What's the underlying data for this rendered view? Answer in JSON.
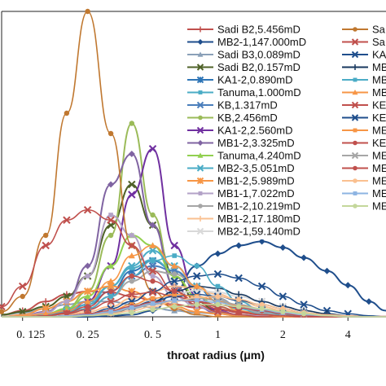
{
  "chart_data": {
    "type": "line",
    "title": "",
    "xlabel": "throat radius (μm)",
    "ylabel": "",
    "x_scale": "log",
    "xlim": [
      0.1,
      6
    ],
    "ylim": [
      0,
      30
    ],
    "x_ticks": [
      0.125,
      0.25,
      0.5,
      1,
      2,
      4
    ],
    "x_tick_labels": [
      "0. 125",
      "0. 25",
      "0. 5",
      "1",
      "2",
      "4"
    ],
    "grid": false,
    "legend_placement": "top-right, two columns",
    "x": [
      0.1,
      0.125,
      0.16,
      0.2,
      0.25,
      0.32,
      0.4,
      0.5,
      0.63,
      0.8,
      1,
      1.25,
      1.6,
      2,
      2.5,
      3.2,
      4,
      5,
      6
    ],
    "series": [
      {
        "name": "Sadi B2,5.456mD",
        "color": "#c0504d",
        "marker": "tick",
        "values": [
          0.2,
          0.6,
          1.5,
          2.2,
          2.5,
          2.4,
          2.0,
          1.6,
          1.2,
          0.9,
          0.7,
          0.5,
          0.4,
          0.3,
          0.2,
          0.15,
          0.1,
          0.05,
          0.02
        ]
      },
      {
        "name": "MB2-1,147.000mD",
        "color": "#1f4e8c",
        "marker": "diamond",
        "values": [
          0,
          0,
          0,
          0,
          0,
          0.1,
          0.2,
          0.6,
          2.5,
          5.0,
          6.2,
          7.0,
          7.4,
          6.8,
          5.8,
          4.5,
          3.1,
          1.5,
          0.6
        ]
      },
      {
        "name": "Sadi B3,0.089mD",
        "color": "#8aa0b8",
        "marker": "triangle",
        "values": [
          0.2,
          0.4,
          0.8,
          1.2,
          1.5,
          1.5,
          1.2,
          0.9,
          0.6,
          0.4,
          0.3,
          0.2,
          0.1,
          0.05,
          0,
          0,
          0,
          0,
          0
        ]
      },
      {
        "name": "Sadi B2,0.157mD",
        "color": "#4f6228",
        "marker": "x",
        "values": [
          0.2,
          0.5,
          1.0,
          2.0,
          4.0,
          9.0,
          13.0,
          9.0,
          4.0,
          1.5,
          0.5,
          0.2,
          0.1,
          0,
          0,
          0,
          0,
          0,
          0
        ]
      },
      {
        "name": "KA1-2,0.890mD",
        "color": "#2e75b6",
        "marker": "star",
        "values": [
          0,
          0.1,
          0.3,
          0.6,
          1.2,
          2.5,
          4.5,
          5.5,
          4.5,
          2.8,
          1.5,
          0.8,
          0.4,
          0.2,
          0.1,
          0,
          0,
          0,
          0
        ]
      },
      {
        "name": "Tanuma,1.000mD",
        "color": "#4bacc6",
        "marker": "bar",
        "values": [
          0,
          0.1,
          0.3,
          0.7,
          1.5,
          3.0,
          4.8,
          5.6,
          4.5,
          3.0,
          1.8,
          1.0,
          0.5,
          0.2,
          0.1,
          0,
          0,
          0,
          0
        ]
      },
      {
        "name": "KB,1.317mD",
        "color": "#4a7ebb",
        "marker": "x",
        "values": [
          0,
          0,
          0.1,
          0.3,
          0.8,
          2.0,
          4.0,
          5.0,
          4.5,
          3.0,
          1.8,
          1.0,
          0.5,
          0.2,
          0.1,
          0,
          0,
          0,
          0
        ]
      },
      {
        "name": "KB,2.456mD",
        "color": "#9bbb59",
        "marker": "circle",
        "values": [
          0,
          0,
          0.2,
          0.8,
          2.5,
          8.0,
          19.0,
          10.0,
          3.0,
          1.0,
          0.4,
          0.1,
          0,
          0,
          0,
          0,
          0,
          0,
          0
        ]
      },
      {
        "name": "KA1-2,2.560mD",
        "color": "#7030a0",
        "marker": "x",
        "values": [
          0,
          0,
          0.2,
          0.5,
          1.5,
          5.0,
          12.0,
          16.5,
          7.0,
          2.0,
          0.6,
          0.2,
          0,
          0,
          0,
          0,
          0,
          0,
          0
        ]
      },
      {
        "name": "MB1-2,3.325mD",
        "color": "#8064a2",
        "marker": "diamond",
        "values": [
          0,
          0.1,
          0.5,
          1.5,
          5.0,
          13.0,
          16.0,
          9.0,
          3.0,
          1.0,
          0.3,
          0.1,
          0,
          0,
          0,
          0,
          0,
          0,
          0
        ]
      },
      {
        "name": "Tanuma,4.240mD",
        "color": "#92d050",
        "marker": "triangle",
        "values": [
          0,
          0.1,
          0.3,
          0.8,
          2.0,
          5.0,
          8.0,
          7.0,
          4.0,
          2.0,
          1.0,
          0.5,
          0.2,
          0.1,
          0,
          0,
          0,
          0,
          0
        ]
      },
      {
        "name": "MB2-3,5.051mD",
        "color": "#4bacc6",
        "marker": "x",
        "values": [
          0,
          0,
          0.2,
          0.5,
          1.2,
          3.0,
          5.0,
          6.5,
          5.0,
          3.0,
          1.5,
          0.8,
          0.3,
          0.1,
          0,
          0,
          0,
          0,
          0
        ]
      },
      {
        "name": "MB1-2,5.989mD",
        "color": "#f79646",
        "marker": "star",
        "values": [
          0,
          0.2,
          0.8,
          1.5,
          2.5,
          3.0,
          2.5,
          1.6,
          1.0,
          0.5,
          0.3,
          0.1,
          0,
          0,
          0,
          0,
          0,
          0,
          0
        ]
      },
      {
        "name": "MB1-1,7.022mD",
        "color": "#b3a2c7",
        "marker": "bar",
        "values": [
          0,
          0.1,
          0.4,
          1.5,
          4.0,
          10.0,
          8.0,
          4.0,
          2.0,
          1.0,
          0.5,
          0.2,
          0.1,
          0,
          0,
          0,
          0,
          0,
          0
        ]
      },
      {
        "name": "MB1-2,10.219mD",
        "color": "#a6a6a6",
        "marker": "circle",
        "values": [
          0,
          0,
          0.1,
          0.3,
          0.8,
          2.0,
          3.5,
          4.5,
          4.2,
          3.0,
          1.8,
          0.9,
          0.4,
          0.2,
          0.1,
          0,
          0,
          0,
          0
        ]
      },
      {
        "name": "MB1-2,17.180mD",
        "color": "#fac090",
        "marker": "tick",
        "values": [
          0,
          0,
          0.1,
          0.2,
          0.5,
          1.0,
          1.8,
          2.5,
          3.0,
          2.8,
          2.2,
          1.6,
          1.0,
          0.6,
          0.3,
          0.1,
          0,
          0,
          0
        ]
      },
      {
        "name": "MB2-1,59.140mD",
        "color": "#d9d9d9",
        "marker": "x",
        "values": [
          0,
          0,
          0,
          0.1,
          0.2,
          0.5,
          1.0,
          1.6,
          2.2,
          2.6,
          2.4,
          2.0,
          1.5,
          1.0,
          0.6,
          0.3,
          0.1,
          0,
          0
        ]
      },
      {
        "name": "Sa",
        "color": "#c07830",
        "marker": "circle",
        "values": [
          0.5,
          2.0,
          8.0,
          20.0,
          30.0,
          18.0,
          7.0,
          2.5,
          0.8,
          0.2,
          0,
          0,
          0,
          0,
          0,
          0,
          0,
          0,
          0
        ]
      },
      {
        "name": "Sa",
        "color": "#c0504d",
        "marker": "x",
        "values": [
          1.0,
          3.0,
          7.0,
          9.5,
          10.5,
          9.5,
          7.0,
          4.5,
          2.5,
          1.2,
          0.5,
          0.2,
          0,
          0,
          0,
          0,
          0,
          0,
          0
        ]
      },
      {
        "name": "KA",
        "color": "#1f4e8c",
        "marker": "x",
        "values": [
          0,
          0,
          0,
          0.1,
          0.3,
          0.8,
          1.5,
          2.5,
          3.5,
          4.0,
          4.2,
          3.8,
          3.0,
          2.0,
          1.2,
          0.6,
          0.3,
          0.1,
          0
        ]
      },
      {
        "name": "MB",
        "color": "#17375e",
        "marker": "tick",
        "values": [
          0,
          0,
          0,
          0,
          0.1,
          0.3,
          0.8,
          1.5,
          2.5,
          3.0,
          2.8,
          2.2,
          1.5,
          1.0,
          0.6,
          0.3,
          0.1,
          0,
          0
        ]
      },
      {
        "name": "MB",
        "color": "#4bacc6",
        "marker": "bar",
        "values": [
          0,
          0,
          0.1,
          0.3,
          0.8,
          2.0,
          4.0,
          5.5,
          6.0,
          5.0,
          3.0,
          1.5,
          0.6,
          0.2,
          0,
          0,
          0,
          0,
          0
        ]
      },
      {
        "name": "MB",
        "color": "#f79646",
        "marker": "triangle",
        "values": [
          0,
          0.1,
          0.3,
          0.6,
          1.5,
          3.5,
          6.0,
          7.0,
          5.0,
          3.0,
          1.5,
          0.6,
          0.2,
          0,
          0,
          0,
          0,
          0,
          0
        ]
      },
      {
        "name": "KE",
        "color": "#c0504d",
        "marker": "x",
        "values": [
          0,
          0,
          0.1,
          0.3,
          0.7,
          1.5,
          2.2,
          2.4,
          2.0,
          1.5,
          1.0,
          0.5,
          0.2,
          0.1,
          0,
          0,
          0,
          0,
          0
        ]
      },
      {
        "name": "KE",
        "color": "#1f4e8c",
        "marker": "x",
        "values": [
          0,
          0,
          0,
          0.1,
          0.2,
          0.5,
          1.0,
          1.5,
          2.0,
          2.2,
          2.0,
          1.6,
          1.2,
          0.8,
          0.4,
          0.2,
          0.1,
          0,
          0
        ]
      },
      {
        "name": "ME",
        "color": "#f79646",
        "marker": "bar",
        "values": [
          0,
          0,
          0,
          0.1,
          0.3,
          0.6,
          1.2,
          1.8,
          2.2,
          2.0,
          1.6,
          1.1,
          0.7,
          0.4,
          0.2,
          0.1,
          0,
          0,
          0
        ]
      },
      {
        "name": "KE",
        "color": "#c0504d",
        "marker": "circle",
        "values": [
          0,
          0,
          0.1,
          0.4,
          1.0,
          2.5,
          4.0,
          3.5,
          2.5,
          1.5,
          0.8,
          0.4,
          0.2,
          0.1,
          0,
          0,
          0,
          0,
          0
        ]
      },
      {
        "name": "ME",
        "color": "#a6a6a6",
        "marker": "x",
        "values": [
          0,
          0,
          0,
          0.1,
          0.2,
          0.4,
          0.8,
          1.2,
          1.6,
          1.8,
          1.6,
          1.2,
          0.8,
          0.5,
          0.3,
          0.1,
          0,
          0,
          0
        ]
      },
      {
        "name": "ME",
        "color": "#c0504d",
        "marker": "circle",
        "values": [
          0,
          0,
          0,
          0.1,
          0.3,
          0.6,
          1.0,
          1.4,
          1.6,
          1.5,
          1.2,
          0.9,
          0.6,
          0.3,
          0.1,
          0,
          0,
          0,
          0
        ]
      },
      {
        "name": "ME",
        "color": "#fac090",
        "marker": "circle",
        "values": [
          0,
          0,
          0,
          0,
          0.1,
          0.3,
          0.6,
          1.0,
          1.5,
          1.9,
          2.0,
          1.7,
          1.2,
          0.8,
          0.4,
          0.2,
          0.1,
          0,
          0
        ]
      },
      {
        "name": "ME",
        "color": "#8db4e2",
        "marker": "bar",
        "values": [
          0,
          0,
          0,
          0.1,
          0.2,
          0.5,
          0.9,
          1.3,
          1.6,
          1.6,
          1.4,
          1.0,
          0.7,
          0.4,
          0.2,
          0.1,
          0,
          0,
          0
        ]
      },
      {
        "name": "ME",
        "color": "#c4d79b",
        "marker": "circle",
        "values": [
          0,
          0,
          0,
          0,
          0.1,
          0.2,
          0.4,
          0.7,
          1.0,
          1.2,
          1.2,
          1.0,
          0.8,
          0.5,
          0.3,
          0.1,
          0,
          0,
          0
        ]
      }
    ]
  }
}
